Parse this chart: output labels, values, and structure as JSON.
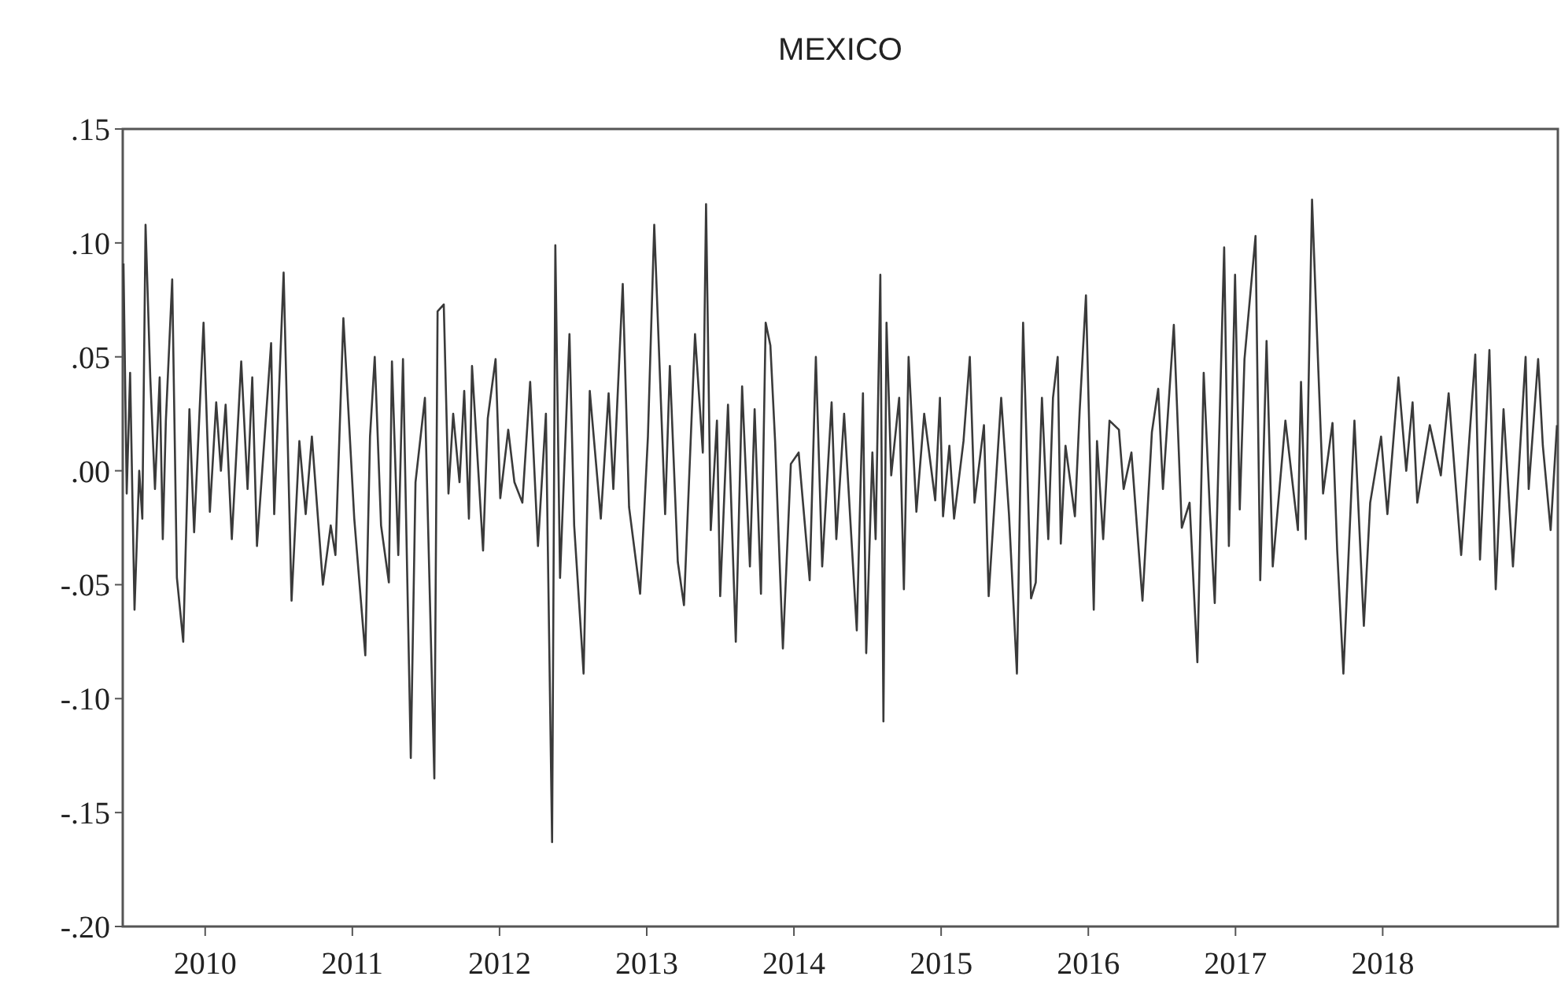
{
  "chart_data": {
    "type": "line",
    "title": "MEXICO",
    "xlim": [
      2009.44,
      2019.19
    ],
    "xticks": [
      2010,
      2011,
      2012,
      2013,
      2014,
      2015,
      2016,
      2017,
      2018
    ],
    "ylim": [
      -0.2,
      0.15
    ],
    "yticks": [
      {
        "value": 0.15,
        "label": ".15"
      },
      {
        "value": 0.1,
        "label": ".10"
      },
      {
        "value": 0.05,
        "label": ".05"
      },
      {
        "value": 0,
        "label": ".00"
      },
      {
        "value": -0.05,
        "label": "-.05"
      },
      {
        "value": -0.1,
        "label": "-.10"
      },
      {
        "value": -0.15,
        "label": "-.15"
      },
      {
        "value": -0.2,
        "label": "-.20"
      }
    ],
    "grid": false,
    "marker": "none",
    "line_style": "solid",
    "series": [
      {
        "color": "#3a3a3a",
        "x": [
          2009.445,
          2009.467,
          2009.49,
          2009.52,
          2009.552,
          2009.573,
          2009.595,
          2009.627,
          2009.659,
          2009.691,
          2009.712,
          2009.733,
          2009.776,
          2009.808,
          2009.851,
          2009.893,
          2009.925,
          2009.989,
          2010.032,
          2010.075,
          2010.107,
          2010.139,
          2010.181,
          2010.245,
          2010.288,
          2010.32,
          2010.352,
          2010.448,
          2010.469,
          2010.533,
          2010.587,
          2010.64,
          2010.683,
          2010.725,
          2010.8,
          2010.853,
          2010.885,
          2010.939,
          2011.013,
          2011.088,
          2011.12,
          2011.152,
          2011.195,
          2011.248,
          2011.269,
          2011.312,
          2011.344,
          2011.397,
          2011.429,
          2011.493,
          2011.557,
          2011.579,
          2011.621,
          2011.653,
          2011.685,
          2011.728,
          2011.76,
          2011.792,
          2011.813,
          2011.888,
          2011.92,
          2011.973,
          2012.005,
          2012.059,
          2012.101,
          2012.155,
          2012.208,
          2012.261,
          2012.315,
          2012.357,
          2012.379,
          2012.411,
          2012.475,
          2012.507,
          2012.571,
          2012.613,
          2012.688,
          2012.741,
          2012.773,
          2012.837,
          2012.88,
          2012.955,
          2013.008,
          2013.051,
          2013.125,
          2013.157,
          2013.211,
          2013.253,
          2013.328,
          2013.381,
          2013.403,
          2013.435,
          2013.477,
          2013.499,
          2013.552,
          2013.605,
          2013.648,
          2013.701,
          2013.733,
          2013.776,
          2013.808,
          2013.84,
          2013.872,
          2013.925,
          2013.979,
          2014.032,
          2014.107,
          2014.149,
          2014.192,
          2014.256,
          2014.288,
          2014.341,
          2014.427,
          2014.469,
          2014.491,
          2014.533,
          2014.555,
          2014.587,
          2014.608,
          2014.629,
          2014.661,
          2014.715,
          2014.747,
          2014.779,
          2014.832,
          2014.885,
          2014.96,
          2014.992,
          2015.013,
          2015.056,
          2015.088,
          2015.152,
          2015.195,
          2015.227,
          2015.291,
          2015.323,
          2015.408,
          2015.461,
          2015.515,
          2015.557,
          2015.611,
          2015.643,
          2015.685,
          2015.728,
          2015.76,
          2015.792,
          2015.813,
          2015.845,
          2015.909,
          2015.941,
          2015.984,
          2016.037,
          2016.059,
          2016.101,
          2016.144,
          2016.208,
          2016.24,
          2016.293,
          2016.368,
          2016.432,
          2016.475,
          2016.507,
          2016.581,
          2016.635,
          2016.688,
          2016.741,
          2016.784,
          2016.827,
          2016.859,
          2016.923,
          2016.955,
          2016.997,
          2017.029,
          2017.061,
          2017.136,
          2017.168,
          2017.211,
          2017.253,
          2017.339,
          2017.424,
          2017.445,
          2017.477,
          2017.52,
          2017.563,
          2017.595,
          2017.659,
          2017.691,
          2017.733,
          2017.808,
          2017.872,
          2017.915,
          2017.989,
          2018.032,
          2018.107,
          2018.16,
          2018.203,
          2018.235,
          2018.32,
          2018.395,
          2018.448,
          2018.533,
          2018.629,
          2018.661,
          2018.725,
          2018.768,
          2018.821,
          2018.885,
          2018.971,
          2018.992,
          2019.056,
          2019.088,
          2019.141,
          2019.184
        ],
        "values": [
          0.091,
          -0.01,
          0.043,
          -0.061,
          0,
          -0.021,
          0.108,
          0.041,
          -0.008,
          0.041,
          -0.03,
          0.022,
          0.084,
          -0.047,
          -0.075,
          0.027,
          -0.027,
          0.065,
          -0.018,
          0.03,
          0,
          0.029,
          -0.03,
          0.048,
          -0.008,
          0.041,
          -0.033,
          0.056,
          -0.019,
          0.087,
          -0.057,
          0.013,
          -0.019,
          0.015,
          -0.05,
          -0.024,
          -0.037,
          0.067,
          -0.021,
          -0.081,
          0.015,
          0.05,
          -0.024,
          -0.049,
          0.048,
          -0.037,
          0.049,
          -0.126,
          -0.005,
          0.032,
          -0.135,
          0.07,
          0.073,
          -0.01,
          0.025,
          -0.005,
          0.035,
          -0.021,
          0.046,
          -0.035,
          0.023,
          0.049,
          -0.012,
          0.018,
          -0.005,
          -0.014,
          0.039,
          -0.033,
          0.025,
          -0.163,
          0.099,
          -0.047,
          0.06,
          -0.024,
          -0.089,
          0.035,
          -0.021,
          0.034,
          -0.008,
          0.082,
          -0.016,
          -0.054,
          0.015,
          0.108,
          -0.019,
          0.046,
          -0.04,
          -0.059,
          0.06,
          0.008,
          0.117,
          -0.026,
          0.022,
          -0.055,
          0.029,
          -0.075,
          0.037,
          -0.042,
          0.027,
          -0.054,
          0.065,
          0.055,
          0.013,
          -0.078,
          0.003,
          0.008,
          -0.048,
          0.05,
          -0.042,
          0.03,
          -0.03,
          0.025,
          -0.07,
          0.034,
          -0.08,
          0.008,
          -0.03,
          0.086,
          -0.11,
          0.065,
          -0.002,
          0.032,
          -0.052,
          0.05,
          -0.018,
          0.025,
          -0.013,
          0.032,
          -0.02,
          0.011,
          -0.021,
          0.013,
          0.05,
          -0.014,
          0.02,
          -0.055,
          0.032,
          -0.019,
          -0.089,
          0.065,
          -0.056,
          -0.049,
          0.032,
          -0.03,
          0.032,
          0.05,
          -0.032,
          0.011,
          -0.02,
          0.026,
          0.077,
          -0.061,
          0.013,
          -0.03,
          0.022,
          0.018,
          -0.008,
          0.008,
          -0.057,
          0.017,
          0.036,
          -0.008,
          0.064,
          -0.025,
          -0.014,
          -0.084,
          0.043,
          -0.019,
          -0.058,
          0.098,
          -0.033,
          0.086,
          -0.017,
          0.049,
          0.103,
          -0.048,
          0.057,
          -0.042,
          0.022,
          -0.026,
          0.039,
          -0.03,
          0.119,
          0.044,
          -0.01,
          0.021,
          -0.035,
          -0.089,
          0.022,
          -0.068,
          -0.014,
          0.015,
          -0.019,
          0.041,
          0,
          0.03,
          -0.014,
          0.02,
          -0.002,
          0.034,
          -0.037,
          0.051,
          -0.039,
          0.053,
          -0.052,
          0.027,
          -0.042,
          0.05,
          -0.008,
          0.049,
          0.011,
          -0.026,
          0.02
        ]
      }
    ]
  }
}
